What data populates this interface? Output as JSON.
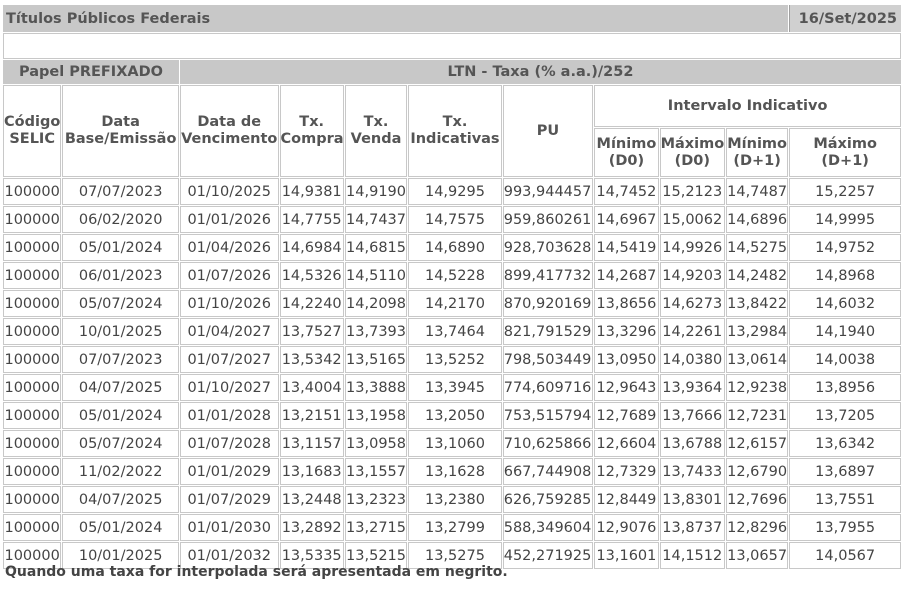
{
  "header": {
    "title": "Títulos Públicos Federais",
    "date": "16/Set/2025"
  },
  "group": {
    "paper_label": "Papel PREFIXADO",
    "rate_label": "LTN - Taxa (% a.a.)/252"
  },
  "columns": {
    "codigo": "Código SELIC",
    "data_base": "Data Base/Emissão",
    "data_venc": "Data de Vencimento",
    "tx_compra": "Tx. Compra",
    "tx_venda": "Tx. Venda",
    "tx_ind": "Tx. Indicativas",
    "pu": "PU",
    "intervalo": "Intervalo Indicativo",
    "min_d0": "Mínimo (D0)",
    "max_d0": "Máximo (D0)",
    "min_d1": "Mínimo (D+1)",
    "max_d1": "Máximo (D+1)"
  },
  "rows": [
    [
      "100000",
      "07/07/2023",
      "01/10/2025",
      "14,9381",
      "14,9190",
      "14,9295",
      "993,944457",
      "14,7452",
      "15,2123",
      "14,7487",
      "15,2257"
    ],
    [
      "100000",
      "06/02/2020",
      "01/01/2026",
      "14,7755",
      "14,7437",
      "14,7575",
      "959,860261",
      "14,6967",
      "15,0062",
      "14,6896",
      "14,9995"
    ],
    [
      "100000",
      "05/01/2024",
      "01/04/2026",
      "14,6984",
      "14,6815",
      "14,6890",
      "928,703628",
      "14,5419",
      "14,9926",
      "14,5275",
      "14,9752"
    ],
    [
      "100000",
      "06/01/2023",
      "01/07/2026",
      "14,5326",
      "14,5110",
      "14,5228",
      "899,417732",
      "14,2687",
      "14,9203",
      "14,2482",
      "14,8968"
    ],
    [
      "100000",
      "05/07/2024",
      "01/10/2026",
      "14,2240",
      "14,2098",
      "14,2170",
      "870,920169",
      "13,8656",
      "14,6273",
      "13,8422",
      "14,6032"
    ],
    [
      "100000",
      "10/01/2025",
      "01/04/2027",
      "13,7527",
      "13,7393",
      "13,7464",
      "821,791529",
      "13,3296",
      "14,2261",
      "13,2984",
      "14,1940"
    ],
    [
      "100000",
      "07/07/2023",
      "01/07/2027",
      "13,5342",
      "13,5165",
      "13,5252",
      "798,503449",
      "13,0950",
      "14,0380",
      "13,0614",
      "14,0038"
    ],
    [
      "100000",
      "04/07/2025",
      "01/10/2027",
      "13,4004",
      "13,3888",
      "13,3945",
      "774,609716",
      "12,9643",
      "13,9364",
      "12,9238",
      "13,8956"
    ],
    [
      "100000",
      "05/01/2024",
      "01/01/2028",
      "13,2151",
      "13,1958",
      "13,2050",
      "753,515794",
      "12,7689",
      "13,7666",
      "12,7231",
      "13,7205"
    ],
    [
      "100000",
      "05/07/2024",
      "01/07/2028",
      "13,1157",
      "13,0958",
      "13,1060",
      "710,625866",
      "12,6604",
      "13,6788",
      "12,6157",
      "13,6342"
    ],
    [
      "100000",
      "11/02/2022",
      "01/01/2029",
      "13,1683",
      "13,1557",
      "13,1628",
      "667,744908",
      "12,7329",
      "13,7433",
      "12,6790",
      "13,6897"
    ],
    [
      "100000",
      "04/07/2025",
      "01/07/2029",
      "13,2448",
      "13,2323",
      "13,2380",
      "626,759285",
      "12,8449",
      "13,8301",
      "12,7696",
      "13,7551"
    ],
    [
      "100000",
      "05/01/2024",
      "01/01/2030",
      "13,2892",
      "13,2715",
      "13,2799",
      "588,349604",
      "12,9076",
      "13,8737",
      "12,8296",
      "13,7955"
    ],
    [
      "100000",
      "10/01/2025",
      "01/01/2032",
      "13,5335",
      "13,5215",
      "13,5275",
      "452,271925",
      "13,1601",
      "14,1512",
      "13,0657",
      "14,0567"
    ]
  ],
  "footnote": "Quando uma taxa for interpolada será apresentada em negrito."
}
